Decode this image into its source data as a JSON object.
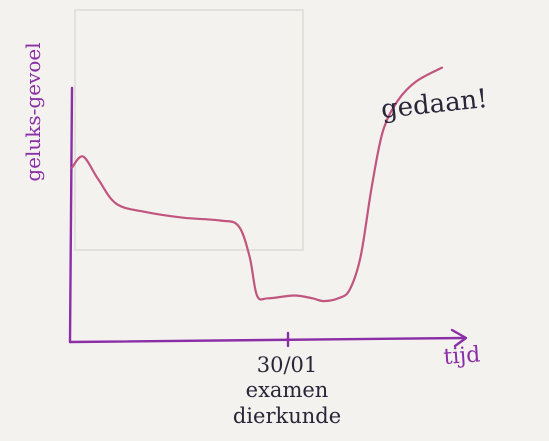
{
  "chart_data": {
    "type": "line",
    "title": "",
    "ylabel": "geluks-gevoel",
    "xlabel": "tijd",
    "x_tick_label": [
      "30/01",
      "examen",
      "dierkunde"
    ],
    "annotation": "gedaan!",
    "series": [
      {
        "values": [
          [
            0,
            0.62
          ],
          [
            3,
            0.66
          ],
          [
            7,
            0.58
          ],
          [
            12,
            0.49
          ],
          [
            20,
            0.46
          ],
          [
            30,
            0.44
          ],
          [
            40,
            0.43
          ],
          [
            45,
            0.41
          ],
          [
            48,
            0.3
          ],
          [
            50,
            0.16
          ],
          [
            53,
            0.15
          ],
          [
            60,
            0.16
          ],
          [
            65,
            0.15
          ],
          [
            68,
            0.14
          ],
          [
            72,
            0.15
          ],
          [
            75,
            0.18
          ],
          [
            78,
            0.3
          ],
          [
            81,
            0.55
          ],
          [
            84,
            0.75
          ],
          [
            88,
            0.86
          ],
          [
            93,
            0.93
          ],
          [
            100,
            0.98
          ]
        ]
      }
    ],
    "xlim": [
      0,
      100
    ],
    "ylim": [
      0,
      1
    ],
    "grid": false,
    "legend": "none",
    "colors": {
      "axis": "#8a2fa6",
      "curve": "#c0557f",
      "text": "#2a2538"
    }
  }
}
